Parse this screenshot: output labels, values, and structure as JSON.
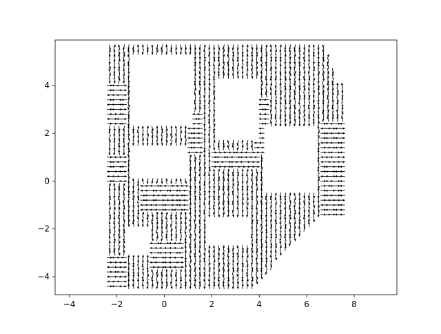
{
  "chart_data": {
    "type": "quiver",
    "title": "",
    "xlabel": "",
    "ylabel": "",
    "xlim": [
      -4.6,
      9.8
    ],
    "ylim": [
      -4.75,
      5.9
    ],
    "x_ticks": [
      -4,
      -2,
      0,
      2,
      4,
      6,
      8
    ],
    "y_ticks": [
      -4,
      -2,
      0,
      2,
      4
    ],
    "grid": false,
    "arrow_color": "#000000",
    "vector_field": {
      "description_free": true,
      "x_range": [
        -2.3,
        7.6
      ],
      "y_range": [
        -4.4,
        5.6
      ],
      "step_x": 0.2,
      "step_y": 0.2,
      "regions": [
        {
          "x": [
            -2.3,
            -1.5
          ],
          "y": [
            2.3,
            4.2
          ],
          "dir": "horizontal"
        },
        {
          "x": [
            -2.3,
            -1.6
          ],
          "y": [
            -0.1,
            1.1
          ],
          "dir": "horizontal"
        },
        {
          "x": [
            -2.3,
            -1.6
          ],
          "y": [
            -4.4,
            -3.0
          ],
          "dir": "horizontal"
        },
        {
          "x": [
            -1.0,
            1.0
          ],
          "y": [
            -1.3,
            -0.1
          ],
          "dir": "horizontal"
        },
        {
          "x": [
            -0.5,
            0.8
          ],
          "y": [
            -3.7,
            -2.5
          ],
          "dir": "horizontal"
        },
        {
          "x": [
            1.0,
            1.6
          ],
          "y": [
            1.1,
            3.0
          ],
          "dir": "horizontal"
        },
        {
          "x": [
            2.0,
            4.0
          ],
          "y": [
            0.6,
            1.4
          ],
          "dir": "horizontal"
        },
        {
          "x": [
            6.6,
            7.6
          ],
          "y": [
            -1.5,
            2.5
          ],
          "dir": "horizontal"
        },
        {
          "x": [
            3.9,
            4.4
          ],
          "y": [
            1.2,
            3.5
          ],
          "dir": "horizontal"
        }
      ]
    }
  }
}
